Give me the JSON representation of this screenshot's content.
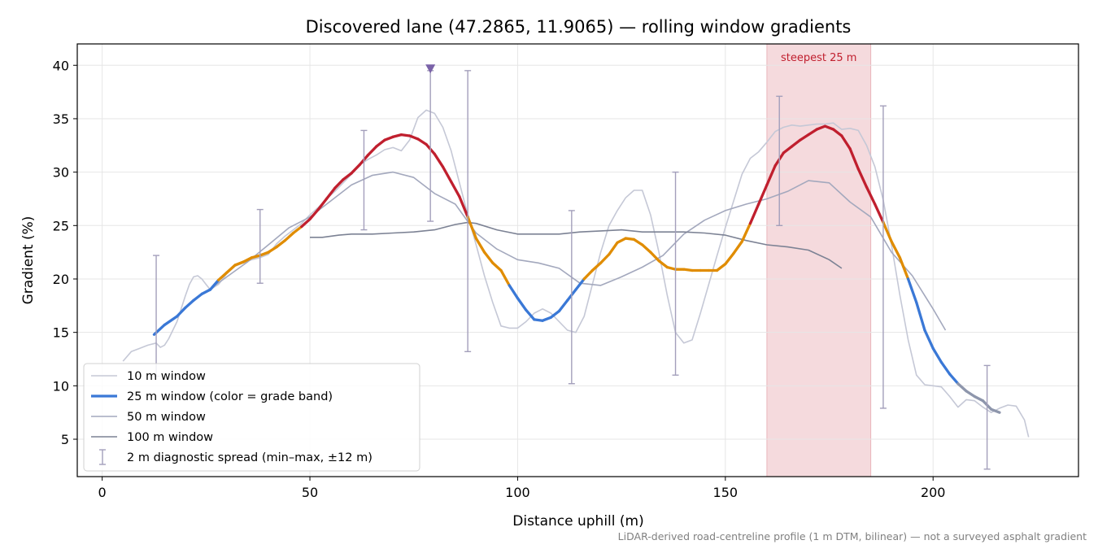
{
  "chart_data": {
    "type": "line",
    "title": "Discovered lane (47.2865, 11.9065) — rolling window gradients",
    "xlabel": "Distance uphill (m)",
    "ylabel": "Gradient (%)",
    "xlim": [
      -6,
      235
    ],
    "ylim": [
      1.5,
      42
    ],
    "x_ticks": [
      0,
      50,
      100,
      150,
      200
    ],
    "y_ticks": [
      5,
      10,
      15,
      20,
      25,
      30,
      35,
      40
    ],
    "grid": true,
    "legend_position": "lower-left",
    "legend": [
      {
        "key": "w10",
        "label": "10 m window"
      },
      {
        "key": "w25",
        "label": "25 m window (color = grade band)"
      },
      {
        "key": "w50",
        "label": "50 m window"
      },
      {
        "key": "w100",
        "label": "100 m window"
      },
      {
        "key": "spread",
        "label": "2 m diagnostic spread (min–max, ±12 m)"
      }
    ],
    "colors": {
      "w10": "#c5c8d6",
      "w25": "#3a78d6",
      "w50": "#a3a8bd",
      "w100": "#7c8294",
      "spread": "#a39fbb",
      "band_blue": "#3a78d6",
      "band_orange": "#e08c00",
      "band_red": "#c01f2e",
      "tail": "#8e96ac",
      "highlight": "#f5dadd",
      "highlight_text": "#c01f2e",
      "marker": "#7a62a8"
    },
    "highlight": {
      "x_from": 160,
      "x_to": 185,
      "label": "steepest 25 m"
    },
    "peak_marker": {
      "x": 79,
      "y": 39.7
    },
    "series": [
      {
        "name": "10 m window",
        "key": "w10",
        "x": [
          5,
          7,
          9,
          11,
          13,
          14,
          15,
          16,
          17,
          18,
          19,
          20,
          21,
          22,
          23,
          24,
          25,
          26,
          28,
          30,
          32,
          34,
          36,
          38,
          40,
          42,
          44,
          46,
          48,
          50,
          52,
          54,
          56,
          58,
          60,
          62,
          64,
          66,
          68,
          70,
          72,
          74,
          76,
          78,
          80,
          82,
          84,
          86,
          88,
          90,
          92,
          94,
          96,
          98,
          100,
          102,
          104,
          106,
          108,
          110,
          112,
          114,
          116,
          118,
          120,
          122,
          124,
          126,
          128,
          130,
          132,
          134,
          136,
          138,
          140,
          142,
          144,
          146,
          148,
          150,
          152,
          154,
          156,
          158,
          160,
          162,
          164,
          166,
          168,
          170,
          172,
          174,
          176,
          178,
          180,
          182,
          184,
          186,
          188,
          190,
          192,
          194,
          196,
          198,
          200,
          202,
          204,
          206,
          208,
          210,
          212,
          214,
          216,
          218,
          220,
          222,
          223
        ],
        "y": [
          12.3,
          13.2,
          13.5,
          13.8,
          14.0,
          13.6,
          13.8,
          14.4,
          15.2,
          16.0,
          17.2,
          18.4,
          19.5,
          20.2,
          20.3,
          20.0,
          19.5,
          19.0,
          19.5,
          20.5,
          21.2,
          21.5,
          21.8,
          22.0,
          22.3,
          23.3,
          24.0,
          24.6,
          25.2,
          26.0,
          26.7,
          27.5,
          28.2,
          29.0,
          29.8,
          30.7,
          31.2,
          31.6,
          32.1,
          32.3,
          32.0,
          33.0,
          35.1,
          35.8,
          35.5,
          34.2,
          32.0,
          29.0,
          26.0,
          23.2,
          20.3,
          17.8,
          15.6,
          15.4,
          15.4,
          16.0,
          16.8,
          17.2,
          16.8,
          16.0,
          15.2,
          15.0,
          16.5,
          19.5,
          22.5,
          25.0,
          26.4,
          27.6,
          28.3,
          28.3,
          26.0,
          22.5,
          18.5,
          15.0,
          14.0,
          14.3,
          16.8,
          19.5,
          22.2,
          24.8,
          27.3,
          29.8,
          31.3,
          31.9,
          32.8,
          33.8,
          34.2,
          34.4,
          34.3,
          34.4,
          34.5,
          34.5,
          34.6,
          34.0,
          34.1,
          33.9,
          32.5,
          30.5,
          27.4,
          23.2,
          18.5,
          14.3,
          11.0,
          10.1,
          10.0,
          9.9,
          9.0,
          8.0,
          8.7,
          8.6,
          8.0,
          7.5,
          7.9,
          8.2,
          8.1,
          6.8,
          5.2
        ]
      },
      {
        "name": "25 m window (color = grade band)",
        "key": "w25",
        "x": [
          12.5,
          15,
          18,
          20,
          22,
          24,
          26,
          28,
          30,
          32,
          34,
          36,
          38,
          40,
          42,
          44,
          46,
          48,
          50,
          52,
          54,
          56,
          58,
          60,
          62,
          64,
          66,
          68,
          70,
          72,
          74,
          76,
          78,
          80,
          82,
          84,
          86,
          88,
          90,
          92,
          94,
          96,
          98,
          100,
          102,
          104,
          106,
          108,
          110,
          112,
          114,
          116,
          118,
          120,
          122,
          124,
          126,
          128,
          130,
          132,
          134,
          136,
          138,
          140,
          142,
          144,
          146,
          148,
          150,
          152,
          154,
          156,
          158,
          160,
          162,
          164,
          166,
          168,
          170,
          172,
          174,
          176,
          178,
          180,
          182,
          184,
          186,
          188,
          190,
          192,
          194,
          196,
          198,
          200,
          202,
          204,
          206,
          208,
          210,
          212,
          214,
          216
        ],
        "y": [
          14.8,
          15.7,
          16.5,
          17.3,
          18.0,
          18.6,
          19.0,
          19.9,
          20.6,
          21.3,
          21.6,
          22.0,
          22.2,
          22.5,
          23.0,
          23.6,
          24.3,
          24.9,
          25.6,
          26.5,
          27.5,
          28.5,
          29.3,
          29.9,
          30.7,
          31.6,
          32.4,
          33.0,
          33.3,
          33.5,
          33.4,
          33.1,
          32.6,
          31.7,
          30.5,
          29.1,
          27.7,
          25.8,
          23.8,
          22.5,
          21.5,
          20.8,
          19.4,
          18.2,
          17.1,
          16.2,
          16.1,
          16.4,
          17.0,
          18.0,
          19.0,
          20.0,
          20.8,
          21.5,
          22.3,
          23.4,
          23.8,
          23.7,
          23.2,
          22.5,
          21.7,
          21.1,
          20.9,
          20.9,
          20.8,
          20.8,
          20.8,
          20.8,
          21.4,
          22.4,
          23.5,
          25.2,
          27.0,
          28.8,
          30.6,
          31.8,
          32.4,
          33.0,
          33.5,
          34.0,
          34.3,
          34.0,
          33.4,
          32.2,
          30.3,
          28.6,
          27.0,
          25.3,
          23.5,
          22.0,
          20.0,
          17.8,
          15.2,
          13.5,
          12.2,
          11.1,
          10.2,
          9.5,
          9.0,
          8.6,
          7.8,
          7.5
        ]
      },
      {
        "name": "50 m window",
        "key": "w50",
        "x": [
          25,
          30,
          35,
          40,
          45,
          50,
          55,
          60,
          65,
          70,
          75,
          80,
          85,
          90,
          95,
          100,
          105,
          110,
          115,
          120,
          125,
          130,
          135,
          140,
          145,
          150,
          155,
          160,
          165,
          170,
          175,
          180,
          185,
          190,
          195,
          200,
          203
        ],
        "y": [
          18.8,
          20.2,
          21.6,
          23.2,
          24.8,
          25.8,
          27.3,
          28.8,
          29.7,
          30.0,
          29.5,
          28.0,
          27.0,
          24.3,
          22.8,
          21.8,
          21.5,
          21.0,
          19.6,
          19.4,
          20.2,
          21.1,
          22.2,
          24.2,
          25.5,
          26.4,
          27.0,
          27.5,
          28.2,
          29.2,
          29.0,
          27.2,
          25.8,
          22.5,
          20.3,
          17.2,
          15.2
        ]
      },
      {
        "name": "100 m window",
        "key": "w100",
        "x": [
          50,
          53,
          57,
          60,
          65,
          70,
          75,
          80,
          85,
          88,
          90,
          95,
          100,
          105,
          110,
          115,
          120,
          125,
          130,
          135,
          140,
          145,
          150,
          155,
          160,
          165,
          170,
          175,
          178
        ],
        "y": [
          23.9,
          23.9,
          24.1,
          24.2,
          24.2,
          24.3,
          24.4,
          24.6,
          25.1,
          25.3,
          25.2,
          24.6,
          24.2,
          24.2,
          24.2,
          24.4,
          24.5,
          24.6,
          24.4,
          24.4,
          24.4,
          24.3,
          24.1,
          23.6,
          23.2,
          23.0,
          22.7,
          21.8,
          21.0
        ]
      }
    ],
    "band_thresholds": [
      20,
      25
    ],
    "tail_from_x": 205,
    "error_bars": {
      "name": "2 m diagnostic spread (min–max, ±12 m)",
      "x": [
        13,
        38,
        63,
        79,
        88,
        113,
        138,
        163,
        188,
        213
      ],
      "low": [
        10.9,
        19.6,
        24.6,
        25.4,
        13.2,
        10.2,
        11.0,
        25.0,
        7.9,
        2.2
      ],
      "high": [
        22.2,
        26.5,
        33.9,
        39.5,
        39.5,
        26.4,
        30.0,
        37.1,
        36.2,
        11.9
      ]
    }
  },
  "footnote": "LiDAR-derived road-centreline profile (1 m DTM, bilinear) — not a surveyed asphalt gradient"
}
